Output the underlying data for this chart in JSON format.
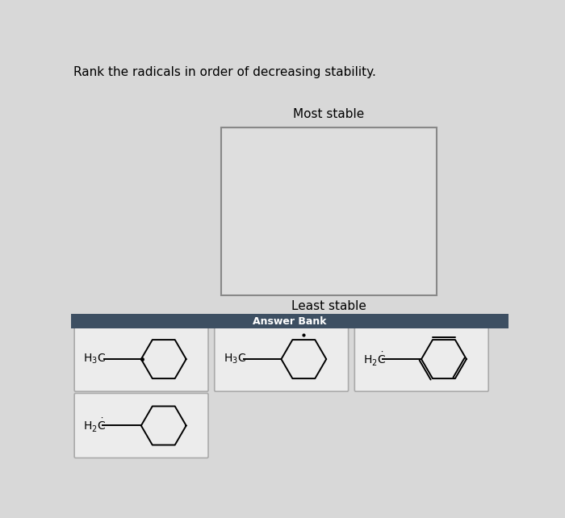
{
  "title": "Rank the radicals in order of decreasing stability.",
  "bg_color": "#d8d8d8",
  "card_bg": "#ececec",
  "card_border": "#aaaaaa",
  "box_bg": "#e4e4e4",
  "box_border": "#888888",
  "ab_header_color": "#3d4f62",
  "ab_text_color": "#ffffff",
  "most_stable": "Most stable",
  "least_stable": "Least stable",
  "answer_bank": "Answer Bank",
  "title_fontsize": 11,
  "label_fontsize": 10
}
